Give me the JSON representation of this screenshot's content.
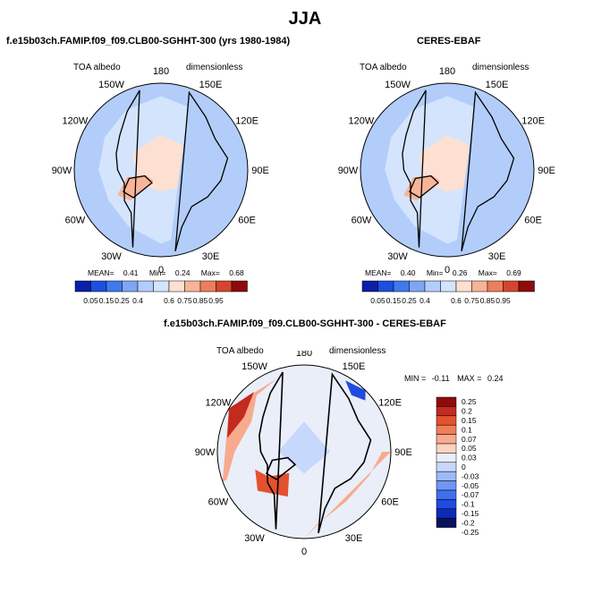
{
  "figure": {
    "title": "JJA"
  },
  "colors": {
    "seq": [
      "#0b1ea6",
      "#1d4fe0",
      "#3f79ee",
      "#7fa6f5",
      "#b3cdfa",
      "#d4e4fd",
      "#fde0d2",
      "#f8b498",
      "#ec7e5c",
      "#d4452f",
      "#8e0b0b"
    ],
    "diff": [
      "#08125e",
      "#0d2bb8",
      "#1f4be0",
      "#3f6ff0",
      "#6e96f5",
      "#9dbaf8",
      "#c6d8fb",
      "#e9eef8",
      "#fcd2c0",
      "#f8aa8d",
      "#f07e58",
      "#e4512f",
      "#c42a1e",
      "#8e0b0b"
    ],
    "land": "#000000",
    "coast": "#000000"
  },
  "chart_data": [
    {
      "id": "model",
      "type": "polar-map",
      "title": "f.e15b03ch.FAMIP.f09_f09.CLB00-SGHHT-300 (yrs 1980-1984)",
      "variable": "TOA albedo",
      "units": "dimensionless",
      "longitude_labels": [
        "180",
        "150E",
        "120E",
        "90E",
        "60E",
        "30E",
        "0",
        "30W",
        "60W",
        "90W",
        "120W",
        "150W"
      ],
      "stats": {
        "mean_label": "MEAN=",
        "mean": "0.41",
        "min_label": "Min=",
        "min": "0.24",
        "max_label": "Max=",
        "max": "0.68"
      },
      "colorbar_levels": [
        "0.05",
        "0.15",
        "0.25",
        "0.4",
        "0.6",
        "0.75",
        "0.85",
        "0.95"
      ]
    },
    {
      "id": "obs",
      "type": "polar-map",
      "title": "CERES-EBAF",
      "variable": "TOA albedo",
      "units": "dimensionless",
      "longitude_labels": [
        "180",
        "150E",
        "120E",
        "90E",
        "60E",
        "30E",
        "0",
        "30W",
        "60W",
        "90W",
        "120W",
        "150W"
      ],
      "stats": {
        "mean_label": "MEAN=",
        "mean": "0.40",
        "min_label": "Min=",
        "min": "0.26",
        "max_label": "Max=",
        "max": "0.69"
      },
      "colorbar_levels": [
        "0.05",
        "0.15",
        "0.25",
        "0.4",
        "0.6",
        "0.75",
        "0.85",
        "0.95"
      ]
    },
    {
      "id": "diff",
      "type": "polar-map",
      "title": "f.e15b03ch.FAMIP.f09_f09.CLB00-SGHHT-300 - CERES-EBAF",
      "variable": "TOA albedo",
      "units": "dimensionless",
      "longitude_labels": [
        "180",
        "150E",
        "120E",
        "90E",
        "60E",
        "30E",
        "0",
        "30W",
        "60W",
        "90W",
        "120W",
        "150W"
      ],
      "stats": {
        "min_label": "MIN =",
        "min": "-0.11",
        "max_label": "MAX =",
        "max": "0.24"
      },
      "colorbar_levels": [
        "0.25",
        "0.2",
        "0.15",
        "0.1",
        "0.07",
        "0.05",
        "0.03",
        "0",
        "-0.03",
        "-0.05",
        "-0.07",
        "-0.1",
        "-0.15",
        "-0.2",
        "-0.25"
      ]
    }
  ]
}
